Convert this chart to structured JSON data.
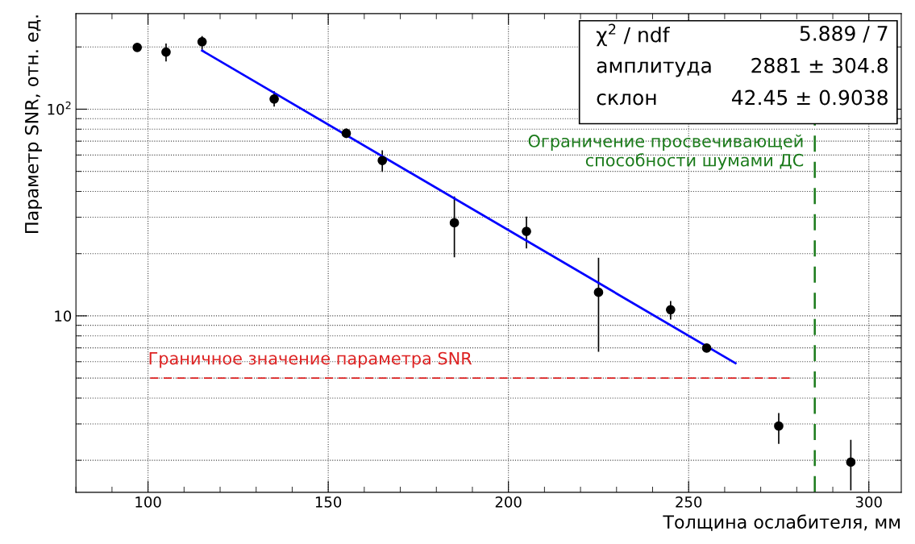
{
  "chart_data": {
    "type": "scatter",
    "xlabel": "Толщина ослабителя, мм",
    "ylabel": "Параметр SNR, отн. ед.",
    "xlim": [
      80,
      309
    ],
    "ylim": [
      1.4,
      290
    ],
    "log": "y",
    "grid": true,
    "xticks": [
      100,
      150,
      200,
      250,
      300
    ],
    "yticks": [
      {
        "value": 10,
        "label": "10"
      },
      {
        "value": 100,
        "label": "10$^{2}$"
      }
    ],
    "series": [
      {
        "color": "#000000",
        "marker": "circle",
        "x": [
          97,
          105,
          115,
          135,
          155,
          165,
          185,
          205,
          225,
          245,
          255,
          275,
          295
        ],
        "values": [
          199,
          189,
          212,
          112,
          76.4,
          56.4,
          28.2,
          25.6,
          13.0,
          10.7,
          6.98,
          2.93,
          1.96
        ],
        "errors": [
          null,
          [
            170,
            208
          ],
          [
            194,
            226
          ],
          [
            103,
            122
          ],
          [
            72.5,
            80.6
          ],
          [
            49.7,
            63.3
          ],
          [
            19.2,
            37.8
          ],
          [
            21.2,
            30.2
          ],
          [
            6.7,
            19.1
          ],
          [
            9.6,
            11.8
          ],
          null,
          [
            2.4,
            3.39
          ],
          [
            1.43,
            2.51
          ]
        ]
      },
      {
        "type": "line",
        "color": "#0000ff",
        "x": [
          115,
          263
        ],
        "values": [
          192,
          5.9
        ]
      }
    ],
    "ref_lines": [
      {
        "axis": "y",
        "value": 5,
        "label": "Граничное значение параметра SNR",
        "color": "#dd2222",
        "line_style": "dashed"
      },
      {
        "axis": "x",
        "value": 285,
        "label": "Ограничение просвечивающей\nспособности шумами ДС",
        "color": "#1a7a1a",
        "line_style": "dashed"
      }
    ],
    "annotations": [
      "χ$^{2}$ / ndf",
      "5.889 / 7",
      "амплитуда",
      "2881 ± 304.8",
      "склон",
      "42.45 ± 0.9038"
    ]
  }
}
